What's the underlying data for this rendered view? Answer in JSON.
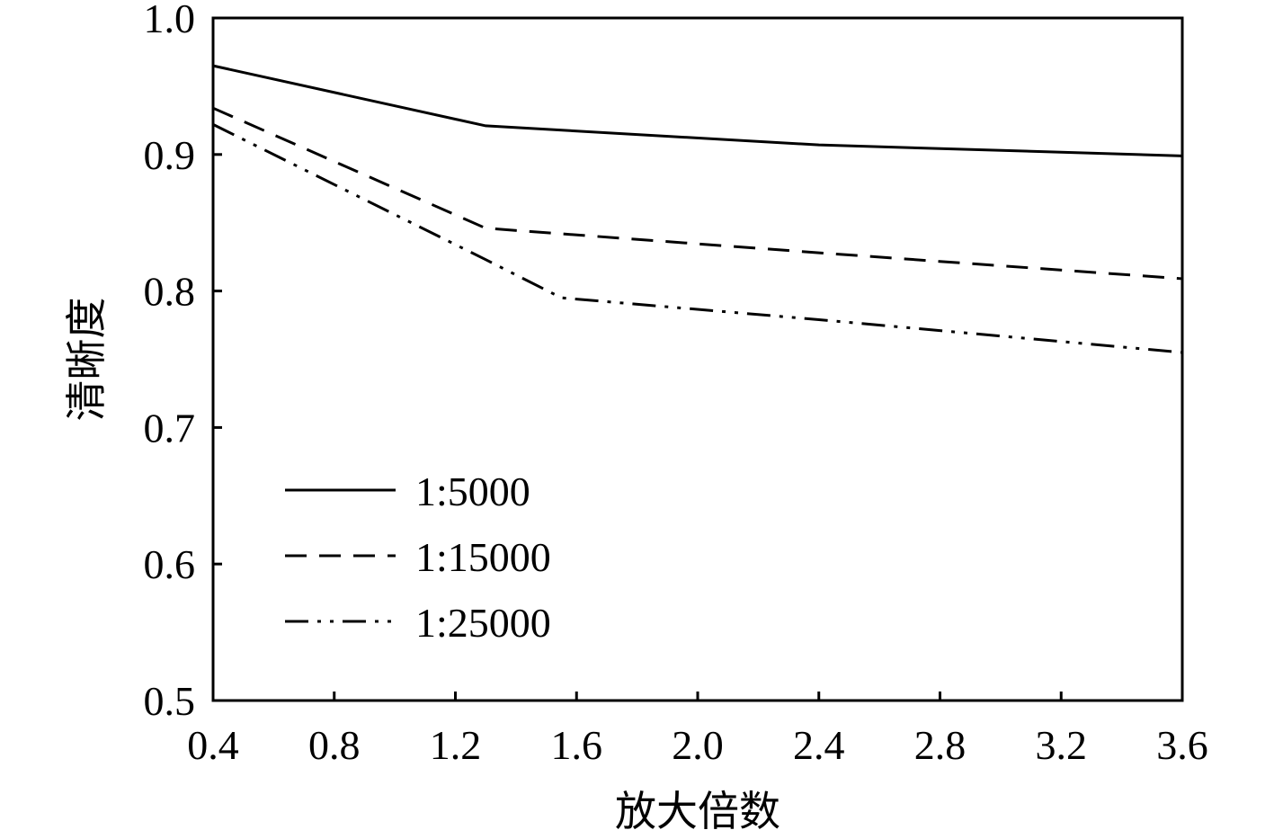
{
  "chart_data": {
    "type": "line",
    "xlabel": "放大倍数",
    "ylabel": "清晰度",
    "xlim": [
      0.4,
      3.6
    ],
    "ylim": [
      0.5,
      1.0
    ],
    "x_ticks": [
      "0.4",
      "0.8",
      "1.2",
      "1.6",
      "2.0",
      "2.4",
      "2.8",
      "3.2",
      "3.6"
    ],
    "y_ticks": [
      "0.5",
      "0.6",
      "0.7",
      "0.8",
      "0.9",
      "1.0"
    ],
    "grid": false,
    "legend_position": "bottom-left",
    "series": [
      {
        "name": "1:5000",
        "style": "solid",
        "x": [
          0.4,
          1.3,
          2.4,
          3.6
        ],
        "y": [
          0.965,
          0.921,
          0.907,
          0.899
        ]
      },
      {
        "name": "1:15000",
        "style": "dashed",
        "x": [
          0.4,
          1.3,
          2.4,
          3.6
        ],
        "y": [
          0.934,
          0.846,
          0.828,
          0.809
        ]
      },
      {
        "name": "1:25000",
        "style": "dashdotdot",
        "x": [
          0.4,
          1.3,
          1.55,
          2.4,
          3.6
        ],
        "y": [
          0.922,
          0.823,
          0.795,
          0.779,
          0.755
        ]
      }
    ]
  }
}
